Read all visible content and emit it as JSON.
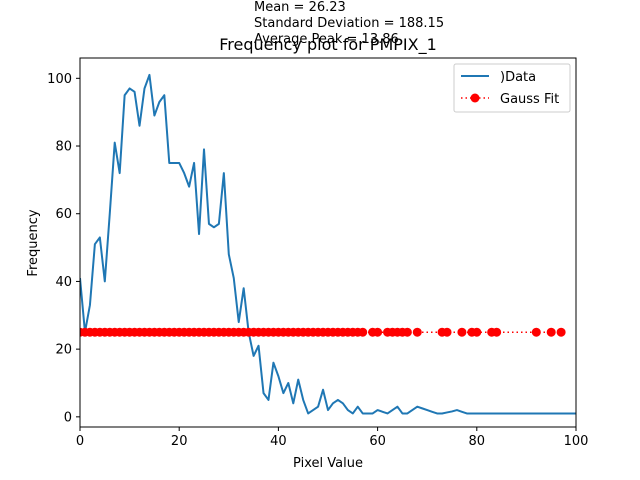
{
  "chart_data": {
    "type": "line",
    "title": "Frequency plot for PMPIX_1",
    "xlabel": "Pixel Value",
    "ylabel": "Frequency",
    "xlim": [
      0,
      100
    ],
    "ylim": [
      -3,
      106
    ],
    "xticks": [
      0,
      20,
      40,
      60,
      80,
      100
    ],
    "yticks": [
      0,
      20,
      40,
      60,
      80,
      100
    ],
    "grid": false,
    "legend_position": "top-right",
    "stats": [
      "Mean = 26.23",
      "Standard Deviation = 188.15",
      "Average Peak = 13.86"
    ],
    "series": [
      {
        "name": ")Data",
        "style": "line",
        "color": "#1f77b4",
        "x": [
          0,
          1,
          2,
          3,
          4,
          5,
          6,
          7,
          8,
          9,
          10,
          11,
          12,
          13,
          14,
          15,
          16,
          17,
          18,
          19,
          20,
          21,
          22,
          23,
          24,
          25,
          26,
          27,
          28,
          29,
          30,
          31,
          32,
          33,
          34,
          35,
          36,
          37,
          38,
          39,
          40,
          41,
          42,
          43,
          44,
          45,
          46,
          47,
          48,
          49,
          50,
          51,
          52,
          53,
          54,
          55,
          56,
          57,
          58,
          59,
          60,
          61,
          62,
          63,
          64,
          65,
          66,
          67,
          68,
          69,
          70,
          71,
          72,
          73,
          74,
          75,
          76,
          77,
          78,
          79,
          80,
          81,
          82,
          83,
          84,
          85,
          86,
          87,
          88,
          89,
          90,
          91,
          92,
          93,
          94,
          95,
          96,
          97,
          98,
          99,
          100
        ],
        "y": [
          41,
          25,
          33,
          51,
          53,
          40,
          60,
          81,
          72,
          95,
          97,
          96,
          86,
          97,
          101,
          89,
          93,
          95,
          75,
          75,
          75,
          72,
          68,
          75,
          54,
          79,
          57,
          56,
          57,
          72,
          48,
          41,
          28,
          38,
          25,
          18,
          21,
          7,
          5,
          16,
          12,
          7,
          10,
          4,
          11,
          5,
          1,
          2,
          3,
          8,
          2,
          4,
          5,
          4,
          2,
          1,
          3,
          1,
          1,
          1,
          2,
          1.5,
          1,
          2,
          3,
          1,
          1,
          2,
          3,
          2.5,
          2,
          1.5,
          1,
          1,
          1.3,
          1.6,
          2,
          1.5,
          1,
          1,
          1,
          1,
          1,
          1,
          1,
          1,
          1,
          1,
          1,
          1,
          1,
          1,
          1,
          1,
          1,
          1,
          1,
          1,
          1,
          1,
          1
        ]
      },
      {
        "name": "Gauss Fit",
        "style": "dotted-markers",
        "color": "#ff0000",
        "x": [
          0,
          1,
          2,
          3,
          4,
          5,
          6,
          7,
          8,
          9,
          10,
          11,
          12,
          13,
          14,
          15,
          16,
          17,
          18,
          19,
          20,
          21,
          22,
          23,
          24,
          25,
          26,
          27,
          28,
          29,
          30,
          31,
          32,
          33,
          34,
          35,
          36,
          37,
          38,
          39,
          40,
          41,
          42,
          43,
          44,
          45,
          46,
          47,
          48,
          49,
          50,
          51,
          52,
          53,
          54,
          55,
          56,
          57,
          59,
          60,
          62,
          63,
          64,
          65,
          66,
          68,
          73,
          74,
          77,
          79,
          80,
          83,
          84,
          92,
          95,
          97
        ],
        "y": [
          25,
          25,
          25,
          25,
          25,
          25,
          25,
          25,
          25,
          25,
          25,
          25,
          25,
          25,
          25,
          25,
          25,
          25,
          25,
          25,
          25,
          25,
          25,
          25,
          25,
          25,
          25,
          25,
          25,
          25,
          25,
          25,
          25,
          25,
          25,
          25,
          25,
          25,
          25,
          25,
          25,
          25,
          25,
          25,
          25,
          25,
          25,
          25,
          25,
          25,
          25,
          25,
          25,
          25,
          25,
          25,
          25,
          25,
          25,
          25,
          25,
          25,
          25,
          25,
          25,
          25,
          25,
          25,
          25,
          25,
          25,
          25,
          25,
          25,
          25,
          25
        ]
      }
    ]
  }
}
